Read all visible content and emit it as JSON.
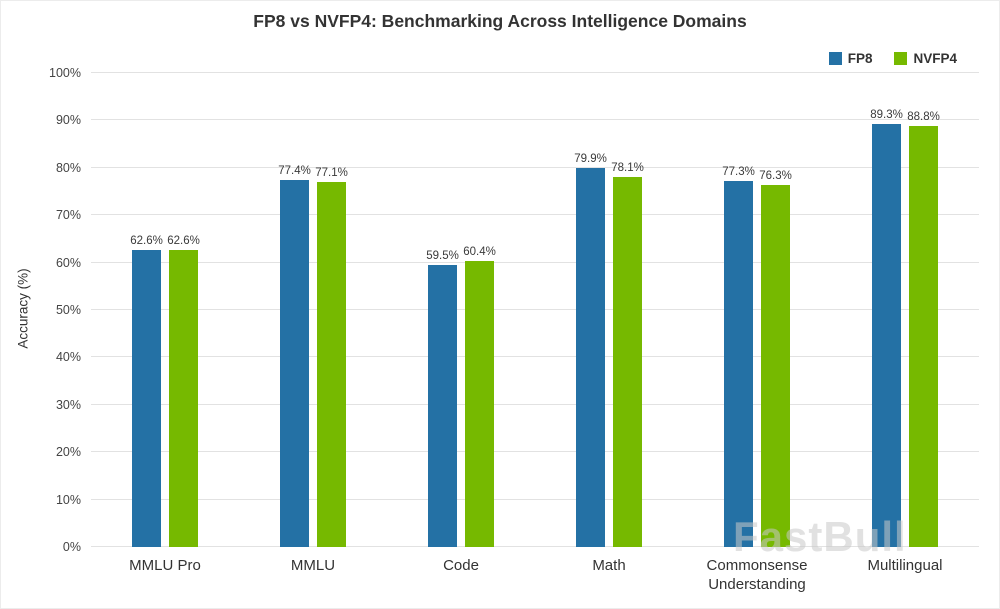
{
  "chart_data": {
    "type": "bar",
    "title": "FP8 vs NVFP4: Benchmarking Across Intelligence Domains",
    "categories": [
      "MMLU Pro",
      "MMLU",
      "Code",
      "Math",
      "Commonsense Understanding",
      "Multilingual"
    ],
    "series": [
      {
        "name": "FP8",
        "color": "#2471A5",
        "values": [
          62.6,
          77.4,
          59.5,
          79.9,
          77.3,
          89.3
        ]
      },
      {
        "name": "NVFP4",
        "color": "#76B900",
        "values": [
          62.6,
          77.1,
          60.4,
          78.1,
          76.3,
          88.8
        ]
      }
    ],
    "xlabel": "",
    "ylabel": "Accuracy (%)",
    "ylim": [
      0,
      100
    ],
    "ytick_step": 10,
    "ytick_suffix": "%",
    "value_label_suffix": "%",
    "grid": true,
    "legend_position": "top-right"
  },
  "watermark": "FastBull"
}
